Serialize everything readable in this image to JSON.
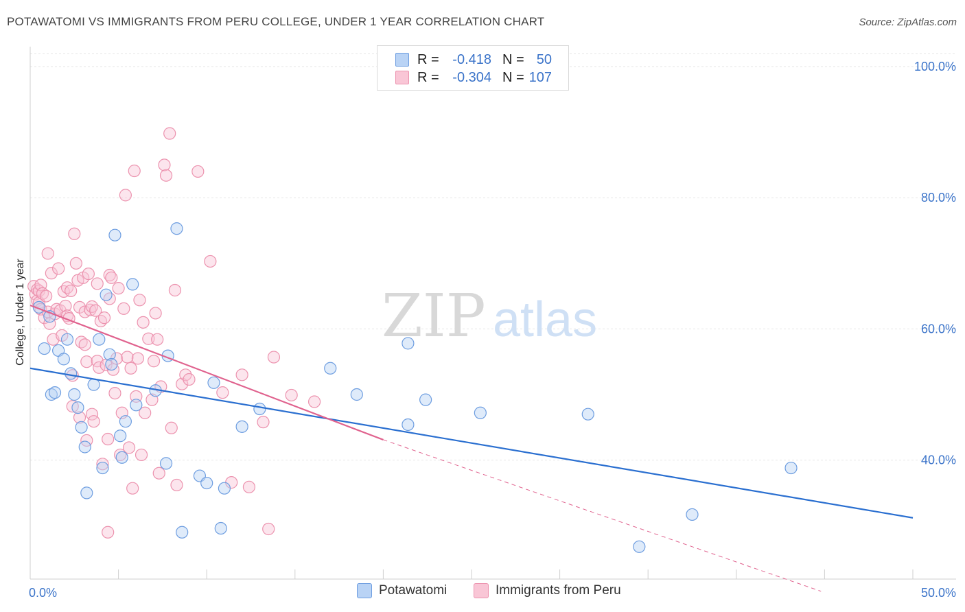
{
  "header": {
    "title": "POTAWATOMI VS IMMIGRANTS FROM PERU COLLEGE, UNDER 1 YEAR CORRELATION CHART",
    "source": "Source: ZipAtlas.com"
  },
  "watermark": {
    "zip": "ZIP",
    "atlas": "atlas"
  },
  "legend_top": {
    "rows": [
      {
        "r_label": "R =",
        "r_value": "-0.418",
        "n_label": "N =",
        "n_value": "50"
      },
      {
        "r_label": "R =",
        "r_value": "-0.304",
        "n_label": "N =",
        "n_value": "107"
      }
    ]
  },
  "legend_bottom": [
    {
      "label": "Potawatomi"
    },
    {
      "label": "Immigrants from Peru"
    }
  ],
  "colors": {
    "blue_fill": "#b9d3f5",
    "blue_stroke": "#6d9de0",
    "blue_line": "#2a6fd0",
    "pink_fill": "#f9c6d6",
    "pink_stroke": "#ec92ae",
    "pink_line": "#e0628e",
    "axis_text": "#3a73c9"
  },
  "chart_data": {
    "type": "scatter",
    "title": "POTAWATOMI VS IMMIGRANTS FROM PERU COLLEGE, UNDER 1 YEAR CORRELATION CHART",
    "xlabel": "",
    "ylabel": "College, Under 1 year",
    "xlim": [
      0,
      50
    ],
    "ylim": [
      20,
      102
    ],
    "x_tick_labels": [
      "0.0%",
      "50.0%"
    ],
    "y_ticks": [
      40,
      60,
      80,
      100
    ],
    "y_tick_labels": [
      "40.0%",
      "60.0%",
      "80.0%",
      "100.0%"
    ],
    "series": [
      {
        "name": "Potawatomi",
        "color": "blue",
        "r": -0.418,
        "n": 50,
        "trend": {
          "x0": 0,
          "y0": 54.0,
          "x1": 50,
          "y1": 31.2
        },
        "points": [
          [
            0.5,
            63.3
          ],
          [
            0.8,
            57.0
          ],
          [
            1.1,
            61.9
          ],
          [
            1.2,
            50.0
          ],
          [
            1.4,
            50.3
          ],
          [
            1.6,
            56.7
          ],
          [
            1.9,
            55.4
          ],
          [
            2.1,
            58.4
          ],
          [
            2.3,
            53.2
          ],
          [
            2.5,
            50.0
          ],
          [
            2.7,
            48.0
          ],
          [
            2.9,
            45.0
          ],
          [
            3.1,
            42.0
          ],
          [
            3.2,
            35.0
          ],
          [
            3.6,
            51.5
          ],
          [
            3.9,
            58.4
          ],
          [
            4.1,
            38.8
          ],
          [
            4.3,
            65.2
          ],
          [
            4.5,
            56.1
          ],
          [
            4.6,
            54.6
          ],
          [
            4.8,
            74.3
          ],
          [
            5.1,
            43.7
          ],
          [
            5.2,
            40.4
          ],
          [
            5.4,
            45.9
          ],
          [
            5.8,
            66.8
          ],
          [
            6.0,
            48.4
          ],
          [
            7.1,
            50.6
          ],
          [
            7.7,
            39.5
          ],
          [
            7.8,
            55.9
          ],
          [
            8.3,
            75.3
          ],
          [
            8.6,
            29.0
          ],
          [
            9.6,
            37.6
          ],
          [
            10.0,
            36.5
          ],
          [
            10.4,
            51.8
          ],
          [
            10.8,
            29.6
          ],
          [
            11.0,
            35.7
          ],
          [
            12.0,
            45.1
          ],
          [
            13.0,
            47.8
          ],
          [
            17.0,
            54.0
          ],
          [
            18.5,
            50.0
          ],
          [
            21.4,
            57.8
          ],
          [
            21.4,
            45.4
          ],
          [
            22.4,
            49.2
          ],
          [
            25.5,
            47.2
          ],
          [
            31.6,
            47.0
          ],
          [
            34.5,
            26.8
          ],
          [
            37.5,
            31.7
          ],
          [
            43.1,
            38.8
          ]
        ]
      },
      {
        "name": "Immigrants from Peru",
        "color": "pink",
        "r": -0.304,
        "n": 107,
        "trend": {
          "x0": 0,
          "y0": 63.6,
          "x1": 20,
          "y1": 43.1
        },
        "trend_dashed": {
          "x0": 20,
          "y0": 43.1,
          "x1": 44.8,
          "y1": 20.0
        },
        "points": [
          [
            0.2,
            66.5
          ],
          [
            0.3,
            65.3
          ],
          [
            0.4,
            64.3
          ],
          [
            0.4,
            66.0
          ],
          [
            0.5,
            64.0
          ],
          [
            0.5,
            65.8
          ],
          [
            0.6,
            66.7
          ],
          [
            0.6,
            63.0
          ],
          [
            0.7,
            65.4
          ],
          [
            0.8,
            61.7
          ],
          [
            0.9,
            65.0
          ],
          [
            1.0,
            71.5
          ],
          [
            1.0,
            62.6
          ],
          [
            1.1,
            60.8
          ],
          [
            1.2,
            68.5
          ],
          [
            1.3,
            58.4
          ],
          [
            1.4,
            62.3
          ],
          [
            1.5,
            63.0
          ],
          [
            1.6,
            69.2
          ],
          [
            1.7,
            62.8
          ],
          [
            1.8,
            59.0
          ],
          [
            1.9,
            65.7
          ],
          [
            2.0,
            63.5
          ],
          [
            2.1,
            66.3
          ],
          [
            2.1,
            62.0
          ],
          [
            2.2,
            61.6
          ],
          [
            2.3,
            65.8
          ],
          [
            2.4,
            52.9
          ],
          [
            2.4,
            48.2
          ],
          [
            2.5,
            74.5
          ],
          [
            2.6,
            70.0
          ],
          [
            2.7,
            67.4
          ],
          [
            2.8,
            63.3
          ],
          [
            2.8,
            46.5
          ],
          [
            2.9,
            58.0
          ],
          [
            3.0,
            67.8
          ],
          [
            3.1,
            62.6
          ],
          [
            3.1,
            57.6
          ],
          [
            3.2,
            55.0
          ],
          [
            3.2,
            43.0
          ],
          [
            3.3,
            68.4
          ],
          [
            3.4,
            62.9
          ],
          [
            3.5,
            63.4
          ],
          [
            3.5,
            47.0
          ],
          [
            3.6,
            45.9
          ],
          [
            3.7,
            62.8
          ],
          [
            3.8,
            66.9
          ],
          [
            3.8,
            55.1
          ],
          [
            3.9,
            54.1
          ],
          [
            4.0,
            61.2
          ],
          [
            4.1,
            39.4
          ],
          [
            4.2,
            61.7
          ],
          [
            4.3,
            54.5
          ],
          [
            4.4,
            43.2
          ],
          [
            4.4,
            29.0
          ],
          [
            4.5,
            68.2
          ],
          [
            4.5,
            64.6
          ],
          [
            4.6,
            67.8
          ],
          [
            4.7,
            53.8
          ],
          [
            4.8,
            50.2
          ],
          [
            4.9,
            55.5
          ],
          [
            5.0,
            66.2
          ],
          [
            5.1,
            40.8
          ],
          [
            5.2,
            47.2
          ],
          [
            5.3,
            63.1
          ],
          [
            5.4,
            80.4
          ],
          [
            5.5,
            55.7
          ],
          [
            5.6,
            41.9
          ],
          [
            5.7,
            54.0
          ],
          [
            5.8,
            35.7
          ],
          [
            5.9,
            84.1
          ],
          [
            6.0,
            49.7
          ],
          [
            6.1,
            55.5
          ],
          [
            6.2,
            64.4
          ],
          [
            6.3,
            40.8
          ],
          [
            6.4,
            61.0
          ],
          [
            6.5,
            47.2
          ],
          [
            6.7,
            58.5
          ],
          [
            6.9,
            49.2
          ],
          [
            7.0,
            55.1
          ],
          [
            7.1,
            62.4
          ],
          [
            7.2,
            58.4
          ],
          [
            7.3,
            38.0
          ],
          [
            7.4,
            51.2
          ],
          [
            7.6,
            85.0
          ],
          [
            7.7,
            83.4
          ],
          [
            7.9,
            89.8
          ],
          [
            8.0,
            44.9
          ],
          [
            8.2,
            65.9
          ],
          [
            8.3,
            36.2
          ],
          [
            8.6,
            51.6
          ],
          [
            8.8,
            53.0
          ],
          [
            9.0,
            52.3
          ],
          [
            9.5,
            84.0
          ],
          [
            10.2,
            70.3
          ],
          [
            10.9,
            50.3
          ],
          [
            11.4,
            36.6
          ],
          [
            12.0,
            53.0
          ],
          [
            12.4,
            35.9
          ],
          [
            13.2,
            45.8
          ],
          [
            13.5,
            29.5
          ],
          [
            13.8,
            55.7
          ],
          [
            14.8,
            49.9
          ],
          [
            16.1,
            48.9
          ]
        ]
      }
    ]
  }
}
